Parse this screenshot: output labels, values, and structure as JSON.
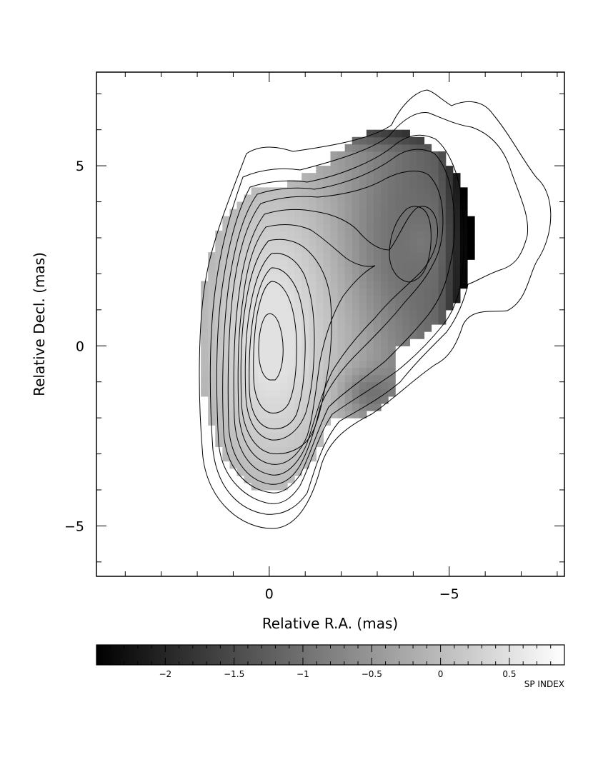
{
  "chart_data": {
    "type": "heatmap",
    "title": "",
    "xlabel": "Relative R.A. (mas)",
    "ylabel": "Relative Decl. (mas)",
    "xlim": [
      4.8,
      -8.2
    ],
    "ylim": [
      -6.4,
      7.6
    ],
    "x_ticks": [
      {
        "value": 0,
        "label": "0"
      },
      {
        "value": -5,
        "label": "−5"
      }
    ],
    "y_ticks": [
      {
        "value": 5,
        "label": "5"
      },
      {
        "value": 0,
        "label": "0"
      },
      {
        "value": -5,
        "label": "−5"
      }
    ],
    "x_minor_step": 1,
    "y_minor_step": 1,
    "colorbar": {
      "label": "SP INDEX",
      "range": [
        -2.5,
        0.9
      ],
      "ticks": [
        {
          "value": -2,
          "label": "−2"
        },
        {
          "value": -1.5,
          "label": "−1.5"
        },
        {
          "value": -1,
          "label": "−1"
        },
        {
          "value": -0.5,
          "label": "−0.5"
        },
        {
          "value": 0,
          "label": "0"
        },
        {
          "value": 0.5,
          "label": "0.5"
        }
      ]
    },
    "core": {
      "ra": 0,
      "dec": 0.2,
      "spectral_index": 0.5
    },
    "jet_component": {
      "ra": -4.1,
      "dec": 2.8,
      "spectral_index": -0.9
    },
    "contour_levels": 13,
    "grid": false,
    "colormap": "grayscale"
  }
}
